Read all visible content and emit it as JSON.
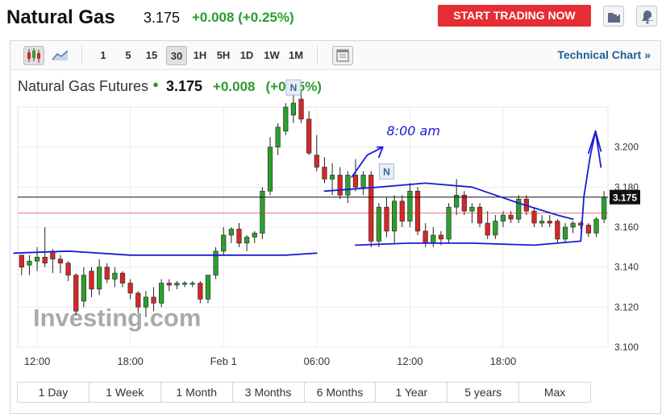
{
  "header": {
    "title": "Natural Gas",
    "price": "3.175",
    "change": "+0.008 (+0.25%)",
    "start_button": "START TRADING NOW"
  },
  "toolbar": {
    "intervals": [
      "1",
      "5",
      "15",
      "30",
      "1H",
      "5H",
      "1D",
      "1W",
      "1M"
    ],
    "active_interval": "30",
    "tech_link": "Technical Chart »"
  },
  "chart_header": {
    "name": "Natural Gas Futures",
    "price": "3.175",
    "change": "+0.008",
    "change_pct": "(+0.25%)"
  },
  "watermark": "Investing.com",
  "annotation_text": "8:00 am",
  "news_marker": "N",
  "ranges": [
    "1 Day",
    "1 Week",
    "1 Month",
    "3 Months",
    "6 Months",
    "1 Year",
    "5 years",
    "Max"
  ],
  "colors": {
    "up": "#2ca02c",
    "down": "#d62728",
    "annotation": "#1a1ad6",
    "accent": "#e52d34"
  },
  "chart_data": {
    "type": "candlestick",
    "y_ticks": [
      3.1,
      3.12,
      3.14,
      3.16,
      3.18,
      3.2
    ],
    "ylim": [
      3.1,
      3.22
    ],
    "x_tick_labels": [
      "12:00",
      "18:00",
      "Feb 1",
      "06:00",
      "12:00",
      "18:00"
    ],
    "x_tick_positions": [
      2,
      14,
      26,
      38,
      50,
      62
    ],
    "last_price": 3.175,
    "last_price_label": "3.175",
    "reference_price": 3.167,
    "news_markers_at": [
      35,
      47
    ],
    "candles": [
      [
        3.146,
        3.146,
        3.136,
        3.14
      ],
      [
        3.141,
        3.146,
        3.136,
        3.143
      ],
      [
        3.143,
        3.15,
        3.138,
        3.145
      ],
      [
        3.145,
        3.16,
        3.14,
        3.142
      ],
      [
        3.148,
        3.149,
        3.137,
        3.144
      ],
      [
        3.144,
        3.146,
        3.137,
        3.142
      ],
      [
        3.142,
        3.143,
        3.133,
        3.136
      ],
      [
        3.136,
        3.137,
        3.116,
        3.118
      ],
      [
        3.123,
        3.14,
        3.12,
        3.136
      ],
      [
        3.138,
        3.14,
        3.125,
        3.129
      ],
      [
        3.129,
        3.144,
        3.126,
        3.14
      ],
      [
        3.14,
        3.142,
        3.132,
        3.134
      ],
      [
        3.134,
        3.14,
        3.13,
        3.137
      ],
      [
        3.137,
        3.138,
        3.13,
        3.132
      ],
      [
        3.132,
        3.134,
        3.124,
        3.127
      ],
      [
        3.127,
        3.128,
        3.117,
        3.12
      ],
      [
        3.12,
        3.128,
        3.115,
        3.125
      ],
      [
        3.125,
        3.13,
        3.118,
        3.122
      ],
      [
        3.122,
        3.134,
        3.12,
        3.132
      ],
      [
        3.132,
        3.134,
        3.128,
        3.131
      ],
      [
        3.131,
        3.133,
        3.129,
        3.132
      ],
      [
        3.132,
        3.133,
        3.13,
        3.132
      ],
      [
        3.132,
        3.133,
        3.13,
        3.132
      ],
      [
        3.132,
        3.133,
        3.122,
        3.124
      ],
      [
        3.124,
        3.135,
        3.122,
        3.136
      ],
      [
        3.136,
        3.15,
        3.134,
        3.148
      ],
      [
        3.148,
        3.16,
        3.146,
        3.156
      ],
      [
        3.156,
        3.16,
        3.152,
        3.159
      ],
      [
        3.159,
        3.162,
        3.15,
        3.152
      ],
      [
        3.152,
        3.156,
        3.148,
        3.155
      ],
      [
        3.155,
        3.158,
        3.152,
        3.157
      ],
      [
        3.157,
        3.18,
        3.154,
        3.178
      ],
      [
        3.178,
        3.205,
        3.176,
        3.2
      ],
      [
        3.2,
        3.212,
        3.196,
        3.21
      ],
      [
        3.208,
        3.222,
        3.206,
        3.22
      ],
      [
        3.216,
        3.226,
        3.212,
        3.222
      ],
      [
        3.224,
        3.228,
        3.212,
        3.214
      ],
      [
        3.214,
        3.218,
        3.196,
        3.197
      ],
      [
        3.196,
        3.206,
        3.188,
        3.19
      ],
      [
        3.19,
        3.195,
        3.182,
        3.184
      ],
      [
        3.184,
        3.192,
        3.176,
        3.186
      ],
      [
        3.186,
        3.19,
        3.174,
        3.176
      ],
      [
        3.176,
        3.188,
        3.172,
        3.186
      ],
      [
        3.186,
        3.194,
        3.178,
        3.18
      ],
      [
        3.18,
        3.188,
        3.176,
        3.186
      ],
      [
        3.186,
        3.188,
        3.15,
        3.153
      ],
      [
        3.153,
        3.172,
        3.15,
        3.17
      ],
      [
        3.17,
        3.175,
        3.155,
        3.158
      ],
      [
        3.158,
        3.176,
        3.152,
        3.173
      ],
      [
        3.173,
        3.176,
        3.16,
        3.163
      ],
      [
        3.163,
        3.182,
        3.16,
        3.178
      ],
      [
        3.178,
        3.18,
        3.156,
        3.158
      ],
      [
        3.158,
        3.162,
        3.15,
        3.152
      ],
      [
        3.152,
        3.16,
        3.15,
        3.156
      ],
      [
        3.156,
        3.158,
        3.151,
        3.154
      ],
      [
        3.154,
        3.172,
        3.152,
        3.17
      ],
      [
        3.17,
        3.184,
        3.166,
        3.176
      ],
      [
        3.176,
        3.178,
        3.166,
        3.168
      ],
      [
        3.168,
        3.172,
        3.162,
        3.17
      ],
      [
        3.17,
        3.172,
        3.16,
        3.162
      ],
      [
        3.162,
        3.168,
        3.154,
        3.156
      ],
      [
        3.156,
        3.166,
        3.154,
        3.163
      ],
      [
        3.163,
        3.168,
        3.16,
        3.166
      ],
      [
        3.166,
        3.168,
        3.162,
        3.164
      ],
      [
        3.164,
        3.176,
        3.162,
        3.174
      ],
      [
        3.174,
        3.176,
        3.166,
        3.168
      ],
      [
        3.168,
        3.17,
        3.16,
        3.162
      ],
      [
        3.162,
        3.166,
        3.16,
        3.163
      ],
      [
        3.163,
        3.166,
        3.16,
        3.162
      ],
      [
        3.163,
        3.164,
        3.152,
        3.154
      ],
      [
        3.154,
        3.162,
        3.152,
        3.16
      ],
      [
        3.16,
        3.163,
        3.157,
        3.162
      ],
      [
        3.162,
        3.163,
        3.159,
        3.161
      ],
      [
        3.161,
        3.162,
        3.155,
        3.157
      ],
      [
        3.157,
        3.165,
        3.155,
        3.164
      ],
      [
        3.164,
        3.178,
        3.162,
        3.175
      ]
    ]
  }
}
